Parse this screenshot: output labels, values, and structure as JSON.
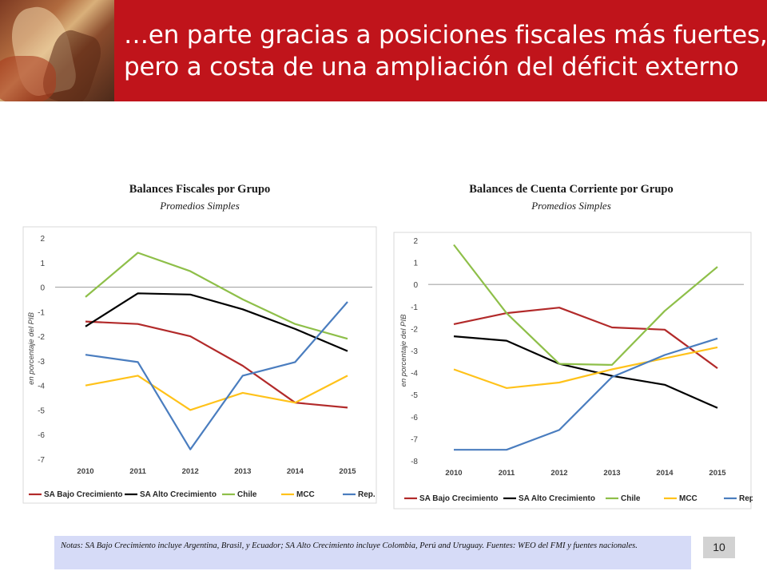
{
  "slide": {
    "title_line1": "…en parte gracias a posiciones fiscales más fuertes,",
    "title_line2": "pero a costa de una ampliación del déficit externo",
    "note": "Notas: SA Bajo Crecimiento incluye Argentina, Brasil, y Ecuador; SA Alto Crecimiento incluye Colombia, Perú and Uruguay. Fuentes: WEO del FMI y fuentes nacionales.",
    "page_number": "10"
  },
  "colors": {
    "header": "#c0141b",
    "SA Bajo Crecimiento": "#b22a2a",
    "SA Alto Crecimiento": "#000000",
    "Chile": "#8ebf49",
    "MCC": "#ffc21a",
    "Rep. Dom.": "#4a7dbf"
  },
  "chart_data": [
    {
      "type": "line",
      "title": "Balances Fiscales por Grupo",
      "subtitle": "Promedios Simples",
      "ylabel": "en porcentaje del PIB",
      "xlabel": "",
      "x": [
        "2010",
        "2011",
        "2012",
        "2013",
        "2014",
        "2015"
      ],
      "ylim": [
        -7,
        2
      ],
      "yticks": [
        "2",
        "1",
        "0",
        "-1",
        "-2",
        "-3",
        "-4",
        "-5",
        "-6",
        "-7"
      ],
      "grid": false,
      "legend": "bottom",
      "series": [
        {
          "name": "SA Bajo Crecimiento",
          "values": [
            -1.4,
            -1.5,
            -2.0,
            -3.2,
            -4.7,
            -4.9
          ]
        },
        {
          "name": "SA Alto Crecimiento",
          "values": [
            -1.6,
            -0.25,
            -0.3,
            -0.9,
            -1.7,
            -2.6
          ]
        },
        {
          "name": "Chile",
          "values": [
            -0.4,
            1.4,
            0.65,
            -0.5,
            -1.5,
            -2.1
          ]
        },
        {
          "name": "MCC",
          "values": [
            -4.0,
            -3.6,
            -5.0,
            -4.3,
            -4.7,
            -3.6
          ]
        },
        {
          "name": "Rep. Dom.",
          "values": [
            -2.75,
            -3.05,
            -6.6,
            -3.6,
            -3.05,
            -0.6
          ]
        }
      ]
    },
    {
      "type": "line",
      "title": "Balances de Cuenta Corriente por Grupo",
      "subtitle": "Promedios Simples",
      "ylabel": "en porcentaje del PIB",
      "xlabel": "",
      "x": [
        "2010",
        "2011",
        "2012",
        "2013",
        "2014",
        "2015"
      ],
      "ylim": [
        -8,
        2
      ],
      "yticks": [
        "2",
        "1",
        "0",
        "-1",
        "-2",
        "-3",
        "-4",
        "-5",
        "-6",
        "-7",
        "-8"
      ],
      "grid": false,
      "legend": "bottom",
      "series": [
        {
          "name": "SA Bajo Crecimiento",
          "values": [
            -1.8,
            -1.3,
            -1.05,
            -1.95,
            -2.05,
            -3.8
          ]
        },
        {
          "name": "SA Alto Crecimiento",
          "values": [
            -2.35,
            -2.55,
            -3.6,
            -4.15,
            -4.55,
            -5.6
          ]
        },
        {
          "name": "Chile",
          "values": [
            1.8,
            -1.3,
            -3.6,
            -3.65,
            -1.2,
            0.8
          ]
        },
        {
          "name": "MCC",
          "values": [
            -3.85,
            -4.7,
            -4.45,
            -3.85,
            -3.35,
            -2.85
          ]
        },
        {
          "name": "Rep. Dom.",
          "values": [
            -7.5,
            -7.5,
            -6.6,
            -4.2,
            -3.2,
            -2.45
          ]
        }
      ]
    }
  ]
}
